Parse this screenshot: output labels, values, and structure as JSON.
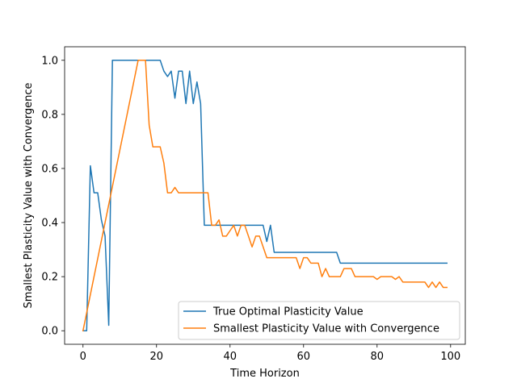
{
  "chart_data": {
    "type": "line",
    "title": "",
    "xlabel": "Time Horizon",
    "ylabel": "Smallest Plasticity Value with Convergence",
    "xlim": [
      -5,
      104
    ],
    "ylim": [
      -0.05,
      1.05
    ],
    "xticks": [
      0,
      20,
      40,
      60,
      80,
      100
    ],
    "yticks": [
      0.0,
      0.2,
      0.4,
      0.6,
      0.8,
      1.0
    ],
    "xtick_labels": [
      "0",
      "20",
      "40",
      "60",
      "80",
      "100"
    ],
    "ytick_labels": [
      "0.0",
      "0.2",
      "0.4",
      "0.6",
      "0.8",
      "1.0"
    ],
    "grid": false,
    "legend_position": "lower-right",
    "series": [
      {
        "name": "True Optimal Plasticity Value",
        "color": "#1f77b4",
        "x": [
          0,
          1,
          2,
          3,
          4,
          5,
          6,
          7,
          8,
          9,
          10,
          11,
          12,
          13,
          14,
          15,
          16,
          17,
          18,
          19,
          20,
          21,
          22,
          23,
          24,
          25,
          26,
          27,
          28,
          29,
          30,
          31,
          32,
          33,
          34,
          35,
          36,
          37,
          38,
          39,
          40,
          41,
          42,
          43,
          44,
          45,
          46,
          47,
          48,
          49,
          50,
          51,
          52,
          53,
          54,
          55,
          56,
          57,
          58,
          59,
          60,
          61,
          62,
          63,
          64,
          65,
          66,
          67,
          68,
          69,
          70,
          71,
          72,
          73,
          74,
          75,
          76,
          77,
          78,
          79,
          80,
          81,
          82,
          83,
          84,
          85,
          86,
          87,
          88,
          89,
          90,
          91,
          92,
          93,
          94,
          95,
          96,
          97,
          98,
          99
        ],
        "y": [
          0.0,
          0.0,
          0.61,
          0.51,
          0.51,
          0.41,
          0.35,
          0.02,
          1.0,
          1.0,
          1.0,
          1.0,
          1.0,
          1.0,
          1.0,
          1.0,
          1.0,
          1.0,
          1.0,
          1.0,
          1.0,
          1.0,
          0.96,
          0.94,
          0.96,
          0.86,
          0.96,
          0.96,
          0.84,
          0.96,
          0.84,
          0.92,
          0.84,
          0.39,
          0.39,
          0.39,
          0.39,
          0.39,
          0.39,
          0.39,
          0.39,
          0.39,
          0.39,
          0.39,
          0.39,
          0.39,
          0.39,
          0.39,
          0.39,
          0.39,
          0.33,
          0.39,
          0.29,
          0.29,
          0.29,
          0.29,
          0.29,
          0.29,
          0.29,
          0.29,
          0.29,
          0.29,
          0.29,
          0.29,
          0.29,
          0.29,
          0.29,
          0.29,
          0.29,
          0.29,
          0.25,
          0.25,
          0.25,
          0.25,
          0.25,
          0.25,
          0.25,
          0.25,
          0.25,
          0.25,
          0.25,
          0.25,
          0.25,
          0.25,
          0.25,
          0.25,
          0.25,
          0.25,
          0.25,
          0.25,
          0.25,
          0.25,
          0.25,
          0.25,
          0.25,
          0.25,
          0.25,
          0.25,
          0.25,
          0.25
        ]
      },
      {
        "name": "Smallest Plasticity Value with Convergence",
        "color": "#ff7f0e",
        "x": [
          0,
          15,
          16,
          17,
          18,
          19,
          20,
          21,
          22,
          23,
          24,
          25,
          26,
          27,
          28,
          29,
          30,
          31,
          32,
          33,
          34,
          35,
          36,
          37,
          38,
          39,
          40,
          41,
          42,
          43,
          44,
          45,
          46,
          47,
          48,
          49,
          50,
          51,
          52,
          53,
          54,
          55,
          56,
          57,
          58,
          59,
          60,
          61,
          62,
          63,
          64,
          65,
          66,
          67,
          68,
          69,
          70,
          71,
          72,
          73,
          74,
          75,
          76,
          77,
          78,
          79,
          80,
          81,
          82,
          83,
          84,
          85,
          86,
          87,
          88,
          89,
          90,
          91,
          92,
          93,
          94,
          95,
          96,
          97,
          98,
          99
        ],
        "y": [
          0.0,
          1.0,
          1.0,
          1.0,
          0.76,
          0.68,
          0.68,
          0.68,
          0.62,
          0.51,
          0.51,
          0.53,
          0.51,
          0.51,
          0.51,
          0.51,
          0.51,
          0.51,
          0.51,
          0.51,
          0.51,
          0.39,
          0.39,
          0.41,
          0.35,
          0.35,
          0.37,
          0.39,
          0.35,
          0.39,
          0.39,
          0.35,
          0.31,
          0.35,
          0.35,
          0.31,
          0.27,
          0.27,
          0.27,
          0.27,
          0.27,
          0.27,
          0.27,
          0.27,
          0.27,
          0.23,
          0.27,
          0.27,
          0.25,
          0.25,
          0.25,
          0.2,
          0.23,
          0.2,
          0.2,
          0.2,
          0.2,
          0.23,
          0.23,
          0.23,
          0.2,
          0.2,
          0.2,
          0.2,
          0.2,
          0.2,
          0.19,
          0.2,
          0.2,
          0.2,
          0.2,
          0.19,
          0.2,
          0.18,
          0.18,
          0.18,
          0.18,
          0.18,
          0.18,
          0.18,
          0.16,
          0.18,
          0.16,
          0.18,
          0.16,
          0.16
        ]
      }
    ]
  }
}
